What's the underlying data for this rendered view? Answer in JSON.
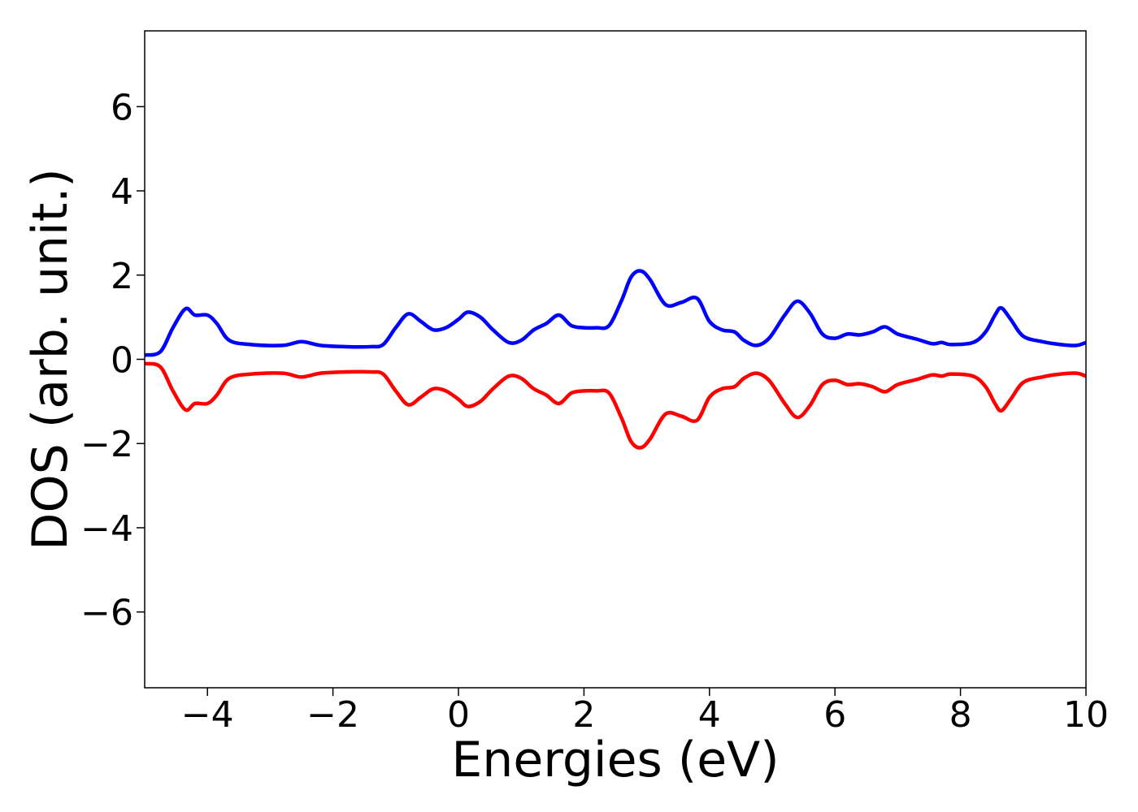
{
  "chart_data": {
    "type": "line",
    "title": "",
    "xlabel": "Energies (eV)",
    "ylabel": "DOS (arb. unit.)",
    "xlim": [
      -5,
      10
    ],
    "ylim": [
      -7.8,
      7.8
    ],
    "grid": false,
    "x_ticks": [
      -4,
      -2,
      0,
      2,
      4,
      6,
      8,
      10
    ],
    "x_tick_labels": [
      "−4",
      "−2",
      "0",
      "2",
      "4",
      "6",
      "8",
      "10"
    ],
    "y_ticks": [
      6,
      4,
      2,
      0,
      -2,
      -4,
      -6
    ],
    "y_tick_labels": [
      "6",
      "4",
      "2",
      "0",
      "−2",
      "−4",
      "−6"
    ],
    "series": [
      {
        "color": "#0000ff",
        "points": [
          [
            -5.0,
            0.1
          ],
          [
            -4.75,
            0.18
          ],
          [
            -4.55,
            0.75
          ],
          [
            -4.35,
            1.2
          ],
          [
            -4.2,
            1.05
          ],
          [
            -4.0,
            1.05
          ],
          [
            -3.85,
            0.85
          ],
          [
            -3.65,
            0.45
          ],
          [
            -3.3,
            0.35
          ],
          [
            -2.8,
            0.33
          ],
          [
            -2.5,
            0.42
          ],
          [
            -2.2,
            0.33
          ],
          [
            -1.8,
            0.3
          ],
          [
            -1.4,
            0.3
          ],
          [
            -1.2,
            0.35
          ],
          [
            -1.0,
            0.75
          ],
          [
            -0.8,
            1.08
          ],
          [
            -0.6,
            0.9
          ],
          [
            -0.4,
            0.7
          ],
          [
            -0.2,
            0.75
          ],
          [
            0.0,
            0.95
          ],
          [
            0.15,
            1.12
          ],
          [
            0.35,
            1.0
          ],
          [
            0.55,
            0.7
          ],
          [
            0.8,
            0.4
          ],
          [
            1.0,
            0.45
          ],
          [
            1.2,
            0.7
          ],
          [
            1.4,
            0.85
          ],
          [
            1.6,
            1.05
          ],
          [
            1.8,
            0.8
          ],
          [
            2.0,
            0.75
          ],
          [
            2.2,
            0.75
          ],
          [
            2.4,
            0.8
          ],
          [
            2.6,
            1.4
          ],
          [
            2.75,
            1.95
          ],
          [
            2.9,
            2.1
          ],
          [
            3.05,
            1.9
          ],
          [
            3.3,
            1.3
          ],
          [
            3.55,
            1.35
          ],
          [
            3.8,
            1.45
          ],
          [
            4.0,
            0.9
          ],
          [
            4.2,
            0.7
          ],
          [
            4.4,
            0.65
          ],
          [
            4.55,
            0.45
          ],
          [
            4.75,
            0.33
          ],
          [
            4.95,
            0.5
          ],
          [
            5.2,
            1.05
          ],
          [
            5.4,
            1.38
          ],
          [
            5.6,
            1.1
          ],
          [
            5.8,
            0.6
          ],
          [
            6.0,
            0.5
          ],
          [
            6.2,
            0.6
          ],
          [
            6.4,
            0.58
          ],
          [
            6.6,
            0.65
          ],
          [
            6.8,
            0.77
          ],
          [
            7.0,
            0.6
          ],
          [
            7.3,
            0.48
          ],
          [
            7.55,
            0.37
          ],
          [
            7.7,
            0.4
          ],
          [
            7.85,
            0.35
          ],
          [
            8.2,
            0.4
          ],
          [
            8.4,
            0.65
          ],
          [
            8.55,
            1.05
          ],
          [
            8.65,
            1.22
          ],
          [
            8.8,
            0.95
          ],
          [
            9.0,
            0.55
          ],
          [
            9.3,
            0.42
          ],
          [
            9.6,
            0.35
          ],
          [
            9.85,
            0.33
          ],
          [
            10.0,
            0.4
          ]
        ]
      },
      {
        "color": "#ff0000",
        "points": [
          [
            -5.0,
            -0.1
          ],
          [
            -4.75,
            -0.18
          ],
          [
            -4.55,
            -0.75
          ],
          [
            -4.35,
            -1.2
          ],
          [
            -4.2,
            -1.05
          ],
          [
            -4.0,
            -1.05
          ],
          [
            -3.85,
            -0.85
          ],
          [
            -3.65,
            -0.45
          ],
          [
            -3.3,
            -0.35
          ],
          [
            -2.8,
            -0.33
          ],
          [
            -2.5,
            -0.42
          ],
          [
            -2.2,
            -0.33
          ],
          [
            -1.8,
            -0.3
          ],
          [
            -1.4,
            -0.3
          ],
          [
            -1.2,
            -0.35
          ],
          [
            -1.0,
            -0.75
          ],
          [
            -0.8,
            -1.08
          ],
          [
            -0.6,
            -0.9
          ],
          [
            -0.4,
            -0.7
          ],
          [
            -0.2,
            -0.75
          ],
          [
            0.0,
            -0.95
          ],
          [
            0.15,
            -1.12
          ],
          [
            0.35,
            -1.0
          ],
          [
            0.55,
            -0.7
          ],
          [
            0.8,
            -0.4
          ],
          [
            1.0,
            -0.45
          ],
          [
            1.2,
            -0.7
          ],
          [
            1.4,
            -0.85
          ],
          [
            1.6,
            -1.05
          ],
          [
            1.8,
            -0.8
          ],
          [
            2.0,
            -0.75
          ],
          [
            2.2,
            -0.75
          ],
          [
            2.4,
            -0.8
          ],
          [
            2.6,
            -1.4
          ],
          [
            2.75,
            -1.95
          ],
          [
            2.9,
            -2.1
          ],
          [
            3.05,
            -1.9
          ],
          [
            3.3,
            -1.3
          ],
          [
            3.55,
            -1.35
          ],
          [
            3.8,
            -1.45
          ],
          [
            4.0,
            -0.9
          ],
          [
            4.2,
            -0.7
          ],
          [
            4.4,
            -0.65
          ],
          [
            4.55,
            -0.45
          ],
          [
            4.75,
            -0.33
          ],
          [
            4.95,
            -0.5
          ],
          [
            5.2,
            -1.05
          ],
          [
            5.4,
            -1.38
          ],
          [
            5.6,
            -1.1
          ],
          [
            5.8,
            -0.6
          ],
          [
            6.0,
            -0.5
          ],
          [
            6.2,
            -0.6
          ],
          [
            6.4,
            -0.58
          ],
          [
            6.6,
            -0.65
          ],
          [
            6.8,
            -0.77
          ],
          [
            7.0,
            -0.6
          ],
          [
            7.3,
            -0.48
          ],
          [
            7.55,
            -0.37
          ],
          [
            7.7,
            -0.4
          ],
          [
            7.85,
            -0.35
          ],
          [
            8.2,
            -0.4
          ],
          [
            8.4,
            -0.65
          ],
          [
            8.55,
            -1.05
          ],
          [
            8.65,
            -1.22
          ],
          [
            8.8,
            -0.95
          ],
          [
            9.0,
            -0.55
          ],
          [
            9.3,
            -0.42
          ],
          [
            9.6,
            -0.35
          ],
          [
            9.85,
            -0.33
          ],
          [
            10.0,
            -0.4
          ]
        ]
      }
    ]
  }
}
